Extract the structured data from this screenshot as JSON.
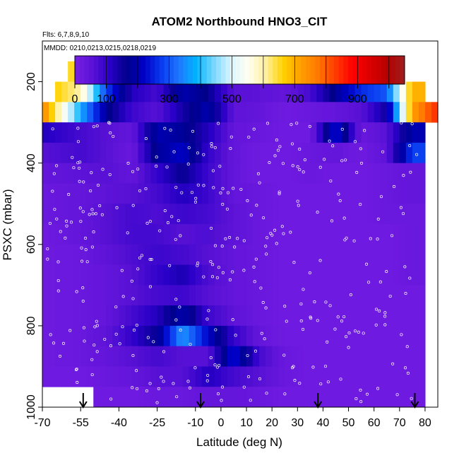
{
  "chart_data": {
    "type": "heatmap",
    "title": "ATOM2 Northbound HNO3_CIT",
    "flights_note": "Flts: 6,7,8,9,10",
    "dates_note": "MMDD: 0210,0213,0215,0218,0219",
    "xlabel": "Latitude (deg N)",
    "ylabel": "PSXC (mbar)",
    "xlim": [
      -70,
      85
    ],
    "ylim": [
      1000,
      100
    ],
    "x_ticks": [
      -70,
      -55,
      -40,
      -25,
      -10,
      0,
      10,
      20,
      30,
      40,
      50,
      60,
      70,
      80
    ],
    "x_tick_labels": [
      "-70",
      "-55",
      "-40",
      "-25",
      "-10",
      "0",
      "10",
      "20",
      "30",
      "40",
      "50",
      "60",
      "70",
      "80"
    ],
    "y_ticks": [
      200,
      400,
      600,
      800,
      1000
    ],
    "y_tick_labels": [
      "200",
      "400",
      "600",
      "800",
      "1000"
    ],
    "colorbar": {
      "range": [
        0,
        1050
      ],
      "tick_values": [
        0,
        100,
        300,
        500,
        700,
        900
      ],
      "tick_labels": [
        "0",
        "100",
        "300",
        "500",
        "700",
        "900"
      ],
      "colors": [
        "#7a1fe6",
        "#5b12d6",
        "#2a00c8",
        "#00008a",
        "#0000c8",
        "#0a3cf0",
        "#1e78ff",
        "#00b4ff",
        "#78d7ff",
        "#dcf5ff",
        "#fffff0",
        "#fff0a0",
        "#ffd200",
        "#ffa000",
        "#ff7800",
        "#ff3c00",
        "#ff0000",
        "#dc0000",
        "#b40000",
        "#a01e1e"
      ]
    },
    "pressure_bins": [
      175,
      225,
      275,
      325,
      375,
      425,
      475,
      525,
      575,
      625,
      675,
      725,
      775,
      825,
      875,
      925,
      975
    ],
    "latitude_profile": [
      -70,
      -55,
      -45,
      -35,
      -25,
      -15,
      -5,
      5,
      15,
      25,
      35,
      45,
      55,
      65,
      75,
      85
    ],
    "values": [
      [
        null,
        650,
        620,
        580,
        540,
        520,
        500,
        480,
        470,
        460,
        null,
        null,
        null,
        null,
        null,
        null
      ],
      [
        700,
        600,
        280,
        120,
        80,
        200,
        160,
        60,
        50,
        40,
        80,
        180,
        260,
        300,
        700,
        null
      ],
      [
        760,
        380,
        180,
        90,
        60,
        140,
        200,
        50,
        40,
        20,
        30,
        40,
        60,
        150,
        720,
        850
      ],
      [
        120,
        80,
        60,
        40,
        200,
        180,
        120,
        40,
        30,
        20,
        20,
        240,
        30,
        60,
        200,
        null
      ],
      [
        60,
        80,
        60,
        30,
        180,
        220,
        100,
        40,
        20,
        20,
        30,
        40,
        20,
        50,
        280,
        null
      ],
      [
        40,
        50,
        60,
        40,
        100,
        160,
        90,
        40,
        20,
        20,
        30,
        20,
        20,
        30,
        40,
        null
      ],
      [
        30,
        40,
        50,
        60,
        80,
        120,
        90,
        40,
        30,
        20,
        20,
        20,
        20,
        30,
        40,
        null
      ],
      [
        30,
        40,
        60,
        80,
        70,
        90,
        80,
        50,
        30,
        20,
        20,
        20,
        20,
        30,
        30,
        null
      ],
      [
        20,
        40,
        60,
        80,
        80,
        60,
        70,
        50,
        30,
        20,
        20,
        20,
        20,
        20,
        30,
        null
      ],
      [
        20,
        30,
        50,
        70,
        90,
        80,
        60,
        40,
        30,
        20,
        20,
        20,
        20,
        20,
        30,
        null
      ],
      [
        20,
        30,
        40,
        60,
        100,
        130,
        70,
        40,
        30,
        20,
        20,
        20,
        20,
        20,
        30,
        null
      ],
      [
        20,
        30,
        40,
        60,
        80,
        90,
        60,
        40,
        30,
        20,
        20,
        20,
        20,
        20,
        20,
        null
      ],
      [
        20,
        30,
        40,
        80,
        120,
        200,
        90,
        50,
        30,
        20,
        20,
        20,
        20,
        20,
        20,
        null
      ],
      [
        20,
        30,
        50,
        100,
        160,
        360,
        220,
        100,
        40,
        20,
        20,
        20,
        20,
        20,
        20,
        null
      ],
      [
        20,
        30,
        40,
        60,
        80,
        60,
        60,
        240,
        80,
        30,
        20,
        20,
        20,
        20,
        20,
        null
      ],
      [
        20,
        20,
        30,
        40,
        60,
        60,
        120,
        80,
        60,
        30,
        20,
        20,
        20,
        20,
        20,
        null
      ],
      [
        null,
        null,
        20,
        20,
        30,
        30,
        40,
        40,
        30,
        20,
        20,
        20,
        20,
        20,
        20,
        null
      ]
    ],
    "profile_arrows_lat": [
      -54,
      -8,
      38,
      76
    ],
    "grid": false,
    "legend": "colorbar-top"
  }
}
